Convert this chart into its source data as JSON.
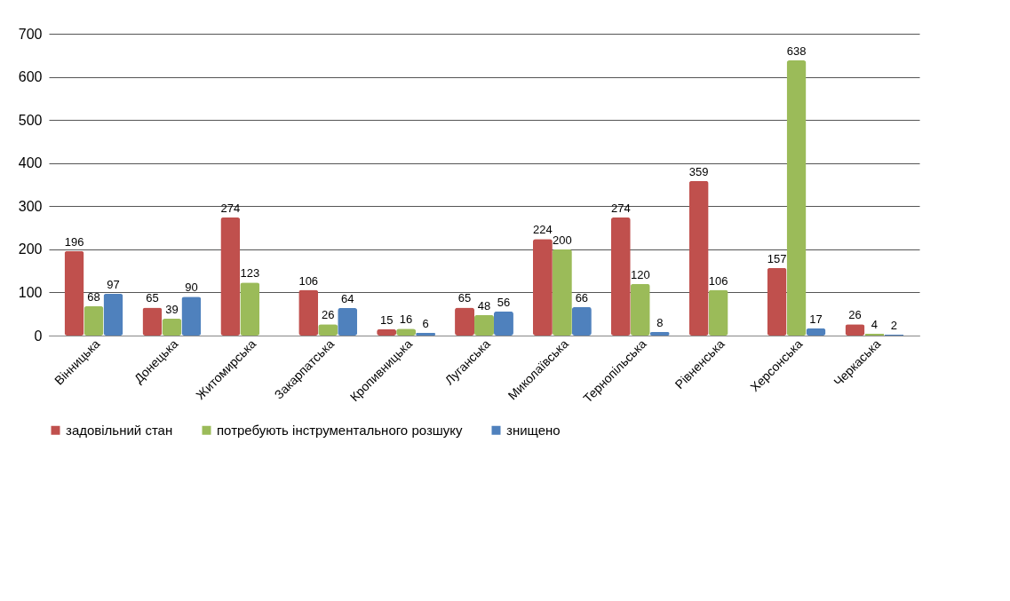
{
  "chart_data": {
    "type": "bar",
    "categories": [
      "Вінницька",
      "Донецька",
      "Житомирська",
      "Закарпатська",
      "Кропивницька",
      "Луганська",
      "Миколаївська",
      "Тернопільська",
      "Рівненська",
      "Херсонська",
      "Черкаська"
    ],
    "series": [
      {
        "name": "задовільний стан",
        "color": "#c0504d",
        "values": [
          196,
          65,
          274,
          106,
          15,
          65,
          224,
          274,
          359,
          157,
          26
        ]
      },
      {
        "name": "потребують інструментального розшуку",
        "color": "#9bbb59",
        "values": [
          68,
          39,
          123,
          26,
          16,
          48,
          200,
          120,
          106,
          638,
          4
        ]
      },
      {
        "name": "знищено",
        "color": "#4f81bd",
        "values": [
          97,
          90,
          null,
          64,
          6,
          56,
          66,
          8,
          null,
          17,
          2
        ]
      }
    ],
    "ylim": [
      0,
      700
    ],
    "yticks": [
      0,
      100,
      200,
      300,
      400,
      500,
      600,
      700
    ],
    "grid": "y",
    "legend": "bottom",
    "data_labels": true
  }
}
